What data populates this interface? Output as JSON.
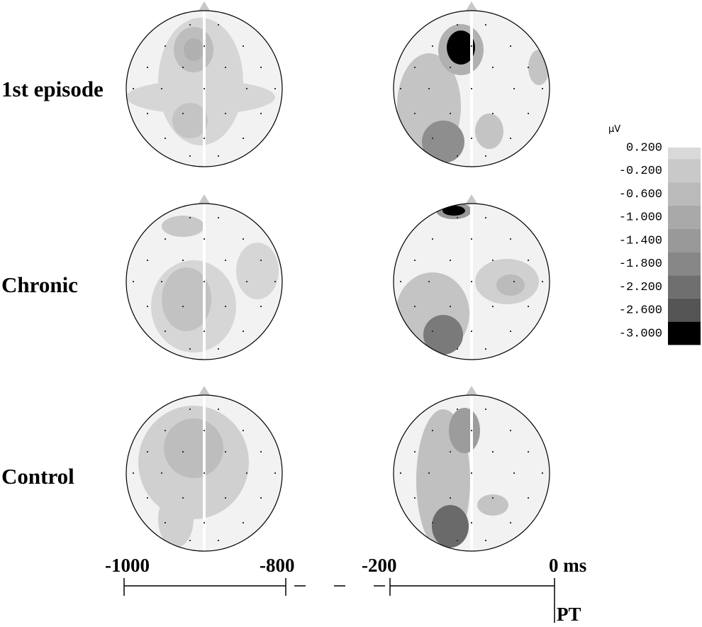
{
  "row_labels": [
    "1st episode",
    "Chronic",
    "Control"
  ],
  "colorbar": {
    "unit": "µV",
    "ticks": [
      "0.200",
      "-0.200",
      "-0.600",
      "-1.000",
      "-1.400",
      "-1.800",
      "-2.200",
      "-2.600",
      "-3.000"
    ]
  },
  "time_axis": {
    "labels": [
      "-1000",
      "-800",
      "-200",
      "0 ms"
    ],
    "marker": "PT"
  }
}
